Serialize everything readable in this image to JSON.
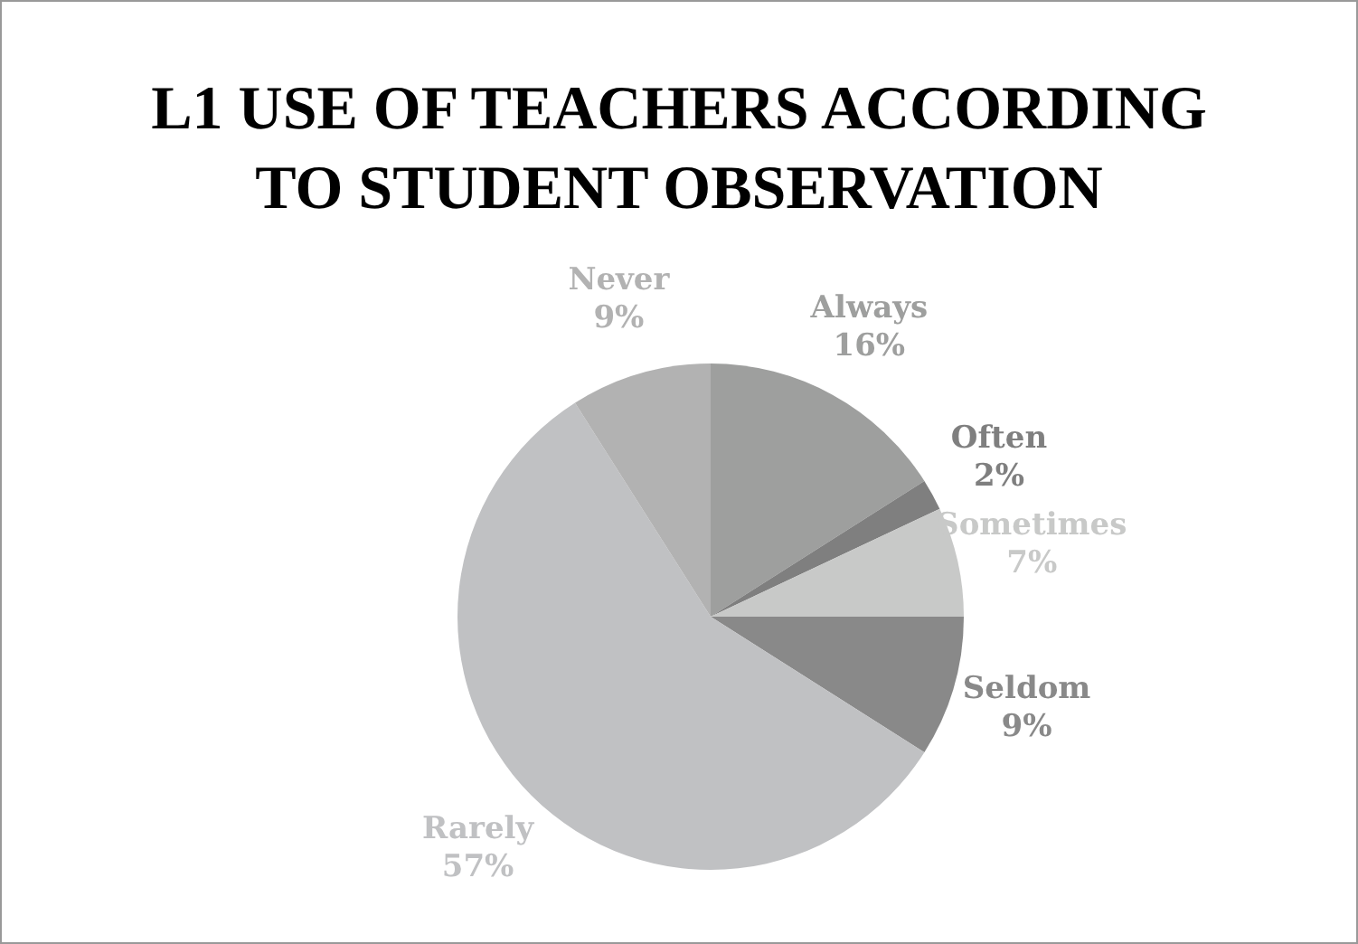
{
  "chart_data": {
    "type": "pie",
    "title": "L1 USE OF TEACHERS ACCORDING TO STUDENT OBSERVATION",
    "categories": [
      "Always",
      "Often",
      "Sometimes",
      "Seldom",
      "Rarely",
      "Never"
    ],
    "values": [
      16,
      2,
      7,
      9,
      57,
      9
    ],
    "value_labels": [
      "16%",
      "2%",
      "7%",
      "9%",
      "57%",
      "9%"
    ],
    "colors": [
      "#9e9f9e",
      "#7f7f7f",
      "#c8c9c8",
      "#898989",
      "#c0c1c3",
      "#b2b2b2"
    ]
  }
}
